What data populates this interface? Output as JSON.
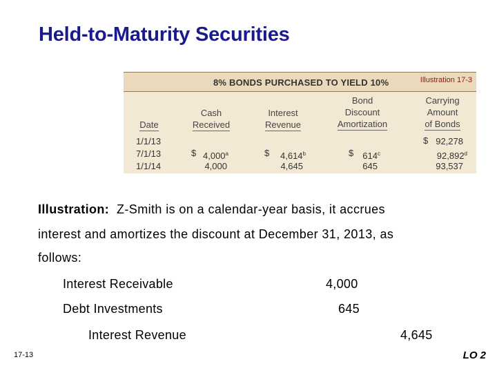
{
  "slide": {
    "title": "Held-to-Maturity Securities",
    "slide_number": "17-13",
    "lo": "LO 2"
  },
  "illustration": {
    "heading": "8% BONDS PURCHASED TO YIELD 10%",
    "tag": "Illustration 17-3",
    "columns": {
      "date": "Date",
      "cash_l1": "Cash",
      "cash_l2": "Received",
      "interest_l1": "Interest",
      "interest_l2": "Revenue",
      "bond_l1": "Bond",
      "bond_l2": "Discount",
      "bond_l3": "Amortization",
      "carry_l1": "Carrying",
      "carry_l2": "Amount",
      "carry_l3": "of Bonds"
    },
    "rows": [
      {
        "date": "1/1/13",
        "cash": "",
        "interest": "",
        "amort": "",
        "carrying": "92,278",
        "carrying_dollar": "$"
      },
      {
        "date": "7/1/13",
        "cash": "4,000",
        "cash_sup": "a",
        "cash_dollar": "$",
        "interest": "4,614",
        "interest_sup": "b",
        "interest_dollar": "$",
        "amort": "614",
        "amort_sup": "c",
        "amort_dollar": "$",
        "carrying": "92,892",
        "carrying_sup": "d"
      },
      {
        "date": "1/1/14",
        "cash": "4,000",
        "interest": "4,645",
        "amort": "645",
        "carrying": "93,537"
      }
    ]
  },
  "text": {
    "label": "Illustration:",
    "line1": "Z-Smith is on a calendar-year basis, it accrues",
    "line2": "interest and amortizes the discount at December 31, 2013, as",
    "line3": "follows:"
  },
  "entries": [
    {
      "account": "Interest Receivable",
      "debit": "4,000",
      "credit": ""
    },
    {
      "account": "Debt Investments",
      "debit": "645",
      "credit": ""
    },
    {
      "account": "Interest Revenue",
      "debit": "",
      "credit": "4,645"
    }
  ],
  "colors": {
    "title": "#1a1a8c",
    "table_bg": "#f3e8d4",
    "table_head_bg": "#ead9bb",
    "tag": "#8b1a1a"
  }
}
